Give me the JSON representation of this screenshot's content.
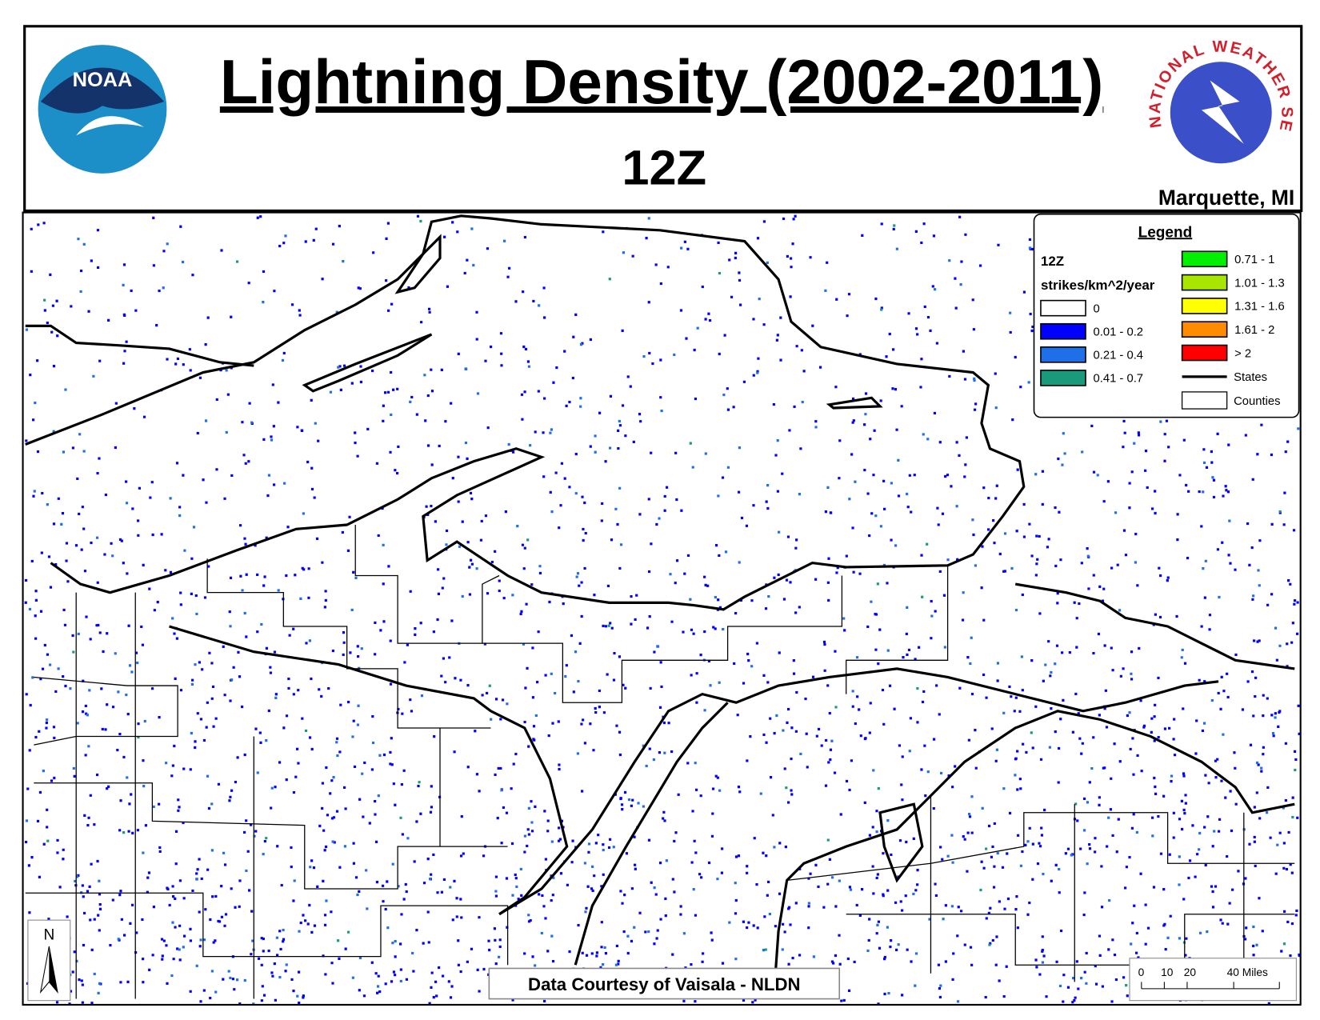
{
  "header": {
    "title": "Lightning Density (2002-2011)",
    "subtitle": "12Z",
    "location": "Marquette, MI",
    "noaa_logo": "NOAA",
    "nws_logo": "NATIONAL WEATHER SERVICE"
  },
  "legend": {
    "title": "Legend",
    "time": "12Z",
    "units": "strikes/km^2/year",
    "items": [
      {
        "label": "0",
        "color": "#ffffff"
      },
      {
        "label": "0.01 - 0.2",
        "color": "#0000ff"
      },
      {
        "label": "0.21 - 0.4",
        "color": "#1e6fe8"
      },
      {
        "label": "0.41 - 0.7",
        "color": "#1a9a7a"
      },
      {
        "label": "0.71 - 1",
        "color": "#00f000"
      },
      {
        "label": "1.01 - 1.3",
        "color": "#a6e600"
      },
      {
        "label": "1.31 - 1.6",
        "color": "#ffff00"
      },
      {
        "label": "1.61 - 2",
        "color": "#ff8c00"
      },
      {
        "label": "> 2",
        "color": "#ff0000"
      }
    ],
    "states": "States",
    "counties": "Counties"
  },
  "credit": "Data Courtesy of Vaisala - NLDN",
  "north": "N",
  "scale_labels": [
    "0",
    "10",
    "20",
    "40 Miles"
  ]
}
